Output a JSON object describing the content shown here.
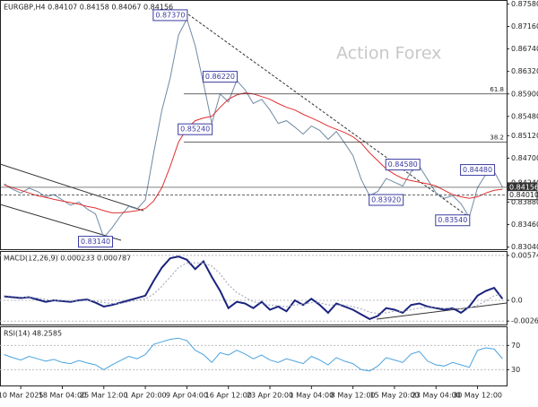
{
  "chart_data": [
    {
      "type": "line",
      "title": "EURGBP,H4 0.84107 0.84158 0.84067 0.84156",
      "watermark": "Action Forex",
      "categories": [
        null,
        null,
        "10 Mar 2025",
        null,
        null,
        null,
        null,
        "18 Mar 04:00",
        null,
        null,
        null,
        null,
        "25 Mar 12:00",
        null,
        null,
        null,
        null,
        "1 Apr 20:00",
        null,
        null,
        null,
        null,
        "9 Apr 04:00",
        null,
        null,
        null,
        null,
        "16 Apr 12:00",
        null,
        null,
        null,
        null,
        "23 Apr 20:00",
        null,
        null,
        null,
        null,
        "1 May 04:00",
        null,
        null,
        null,
        null,
        "8 May 12:00",
        null,
        null,
        null,
        null,
        "15 May 20:00",
        null,
        null,
        null,
        null,
        "23 May 04:00",
        null,
        null,
        null,
        null,
        "30 May 12:00",
        null,
        null,
        null
      ],
      "series": [
        {
          "name": "EURGBP",
          "color": "#6f8aa3",
          "values": [
            0.8422,
            0.8412,
            0.8405,
            0.8414,
            0.8408,
            0.8398,
            0.8402,
            0.8392,
            0.8382,
            0.8388,
            0.8375,
            0.8366,
            0.8322,
            0.834,
            0.8362,
            0.838,
            0.8375,
            0.8392,
            0.848,
            0.856,
            0.862,
            0.87,
            0.873,
            0.868,
            0.861,
            0.8535,
            0.859,
            0.8575,
            0.8615,
            0.8598,
            0.8572,
            0.858,
            0.856,
            0.8535,
            0.854,
            0.8528,
            0.8515,
            0.853,
            0.8522,
            0.8505,
            0.852,
            0.8498,
            0.8475,
            0.843,
            0.84,
            0.8408,
            0.8432,
            0.8425,
            0.8418,
            0.8445,
            0.8455,
            0.843,
            0.8405,
            0.8395,
            0.84,
            0.8385,
            0.836,
            0.8415,
            0.844,
            0.8445,
            0.8416
          ]
        },
        {
          "name": "MA",
          "color": "#e03030",
          "values": [
            0.842,
            0.8415,
            0.841,
            0.8405,
            0.84,
            0.8397,
            0.8393,
            0.839,
            0.8387,
            0.8384,
            0.838,
            0.8377,
            0.8372,
            0.8368,
            0.8368,
            0.837,
            0.8372,
            0.8376,
            0.839,
            0.8415,
            0.8455,
            0.85,
            0.8525,
            0.854,
            0.8545,
            0.8548,
            0.8565,
            0.858,
            0.8588,
            0.8592,
            0.859,
            0.8585,
            0.858,
            0.8572,
            0.8565,
            0.856,
            0.8552,
            0.8545,
            0.8538,
            0.853,
            0.8524,
            0.8518,
            0.851,
            0.8498,
            0.848,
            0.8465,
            0.845,
            0.844,
            0.8432,
            0.8428,
            0.8425,
            0.8422,
            0.8418,
            0.841,
            0.8402,
            0.8398,
            0.8395,
            0.8398,
            0.8405,
            0.841,
            0.8412
          ]
        }
      ],
      "ylim": [
        0.83,
        0.8762
      ],
      "yticks": [
        {
          "value": 0.8758,
          "label": "0.87580"
        },
        {
          "value": 0.8716,
          "label": "0.87160"
        },
        {
          "value": 0.8674,
          "label": "0.86740"
        },
        {
          "value": 0.8632,
          "label": "0.86320"
        },
        {
          "value": 0.859,
          "label": "0.85900"
        },
        {
          "value": 0.8548,
          "label": "0.85480"
        },
        {
          "value": 0.8512,
          "label": "0.85120"
        },
        {
          "value": 0.847,
          "label": "0.84700"
        },
        {
          "value": 0.8424,
          "label": "0.84240"
        },
        {
          "value": 0.8388,
          "label": "0.83880"
        },
        {
          "value": 0.8346,
          "label": "0.83460"
        },
        {
          "value": 0.8304,
          "label": "0.83040"
        }
      ],
      "callouts": [
        {
          "index": 20,
          "value": 0.8737,
          "label": "0.87370"
        },
        {
          "index": 26,
          "value": 0.8622,
          "label": "0.86220"
        },
        {
          "index": 23,
          "value": 0.8524,
          "label": "0.85240"
        },
        {
          "index": 48,
          "value": 0.8458,
          "label": "0.84580"
        },
        {
          "index": 57,
          "value": 0.8448,
          "label": "0.84480"
        },
        {
          "index": 46,
          "value": 0.8392,
          "label": "0.83920"
        },
        {
          "index": 54,
          "value": 0.8354,
          "label": "0.83540"
        },
        {
          "index": 11,
          "value": 0.8314,
          "label": "0.83140"
        }
      ],
      "levels": [
        {
          "label": "61.8",
          "value": 0.859
        },
        {
          "label": "38.2",
          "value": 0.85
        }
      ],
      "price_labels": [
        {
          "value": 0.84156,
          "label": "0.84156"
        },
        {
          "value": 0.8401,
          "label": "0.84010"
        }
      ]
    },
    {
      "type": "line",
      "title": "MACD(12,26,9) 0.000233 0.000787",
      "series": [
        {
          "name": "MACD",
          "color": "#1a237e",
          "values": [
            0.0005,
            0.0004,
            0.0003,
            0.0004,
            0.0001,
            -0.0002,
            0,
            -0.0001,
            -0.0002,
            0,
            0.0001,
            -0.0003,
            -0.0008,
            -0.0006,
            -0.0003,
            0,
            0.0003,
            0.0006,
            0.0025,
            0.0042,
            0.0054,
            0.0056,
            0.0052,
            0.004,
            0.005,
            0.003,
            0.0012,
            -0.001,
            -0.0002,
            -0.0004,
            -0.001,
            -0.0002,
            -0.0012,
            -0.0008,
            -0.0014,
            0,
            -0.0006,
            0.0002,
            -0.0006,
            -0.0016,
            -0.0004,
            -0.0008,
            -0.0012,
            -0.0018,
            -0.0024,
            -0.002,
            -0.001,
            -0.0012,
            -0.0016,
            -0.0006,
            -0.0004,
            -0.0008,
            -0.001,
            -0.0012,
            -0.001,
            -0.0016,
            -0.0008,
            0.0006,
            0.0012,
            0.0016,
            0.0002
          ]
        },
        {
          "name": "Signal",
          "color": "#9aa0b5",
          "values": [
            0.0006,
            0.0005,
            0.0004,
            0.0004,
            0.0003,
            0.0001,
            0,
            0,
            -0.0001,
            -0.0001,
            0,
            -0.0001,
            -0.0003,
            -0.0004,
            -0.0004,
            -0.0002,
            0,
            0.0002,
            0.0008,
            0.0018,
            0.003,
            0.0042,
            0.0048,
            0.0048,
            0.0048,
            0.0044,
            0.0034,
            0.002,
            0.001,
            0.0004,
            -0.0002,
            -0.0004,
            -0.0006,
            -0.0007,
            -0.0008,
            -0.0006,
            -0.0005,
            -0.0003,
            -0.0003,
            -0.0006,
            -0.0006,
            -0.0006,
            -0.0008,
            -0.0011,
            -0.0015,
            -0.0017,
            -0.0016,
            -0.0014,
            -0.0014,
            -0.0012,
            -0.001,
            -0.0009,
            -0.0009,
            -0.001,
            -0.001,
            -0.0011,
            -0.001,
            -0.0006,
            -0.0001,
            0.0006,
            0.0008
          ]
        }
      ],
      "ylim": [
        -0.0031,
        0.0062
      ],
      "yticks": [
        0.005749,
        {
          "value": 0,
          "label": "0.0"
        },
        -0.002663
      ]
    },
    {
      "type": "line",
      "title": "RSI(14) 48.2585",
      "series": [
        {
          "name": "RSI",
          "color": "#4aa3df",
          "values": [
            55,
            50,
            46,
            52,
            48,
            44,
            47,
            42,
            40,
            45,
            41,
            38,
            30,
            38,
            45,
            52,
            48,
            55,
            72,
            76,
            80,
            82,
            78,
            62,
            55,
            42,
            58,
            54,
            62,
            56,
            48,
            54,
            46,
            42,
            48,
            44,
            40,
            52,
            46,
            38,
            50,
            44,
            40,
            30,
            28,
            36,
            50,
            46,
            42,
            56,
            60,
            44,
            38,
            36,
            42,
            38,
            34,
            62,
            66,
            64,
            48.2585
          ]
        }
      ],
      "ylim": [
        4,
        100
      ],
      "yticks": [
        70,
        30
      ]
    }
  ]
}
